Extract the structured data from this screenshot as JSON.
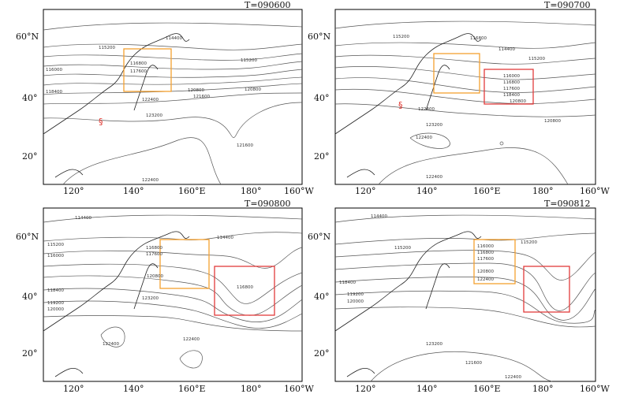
{
  "colors": {
    "frame": "#000000",
    "contour": "#444444",
    "coast": "#222222",
    "orange_box": "#f5a030",
    "red_box": "#e23b3b",
    "typhoon": "#e0322b"
  },
  "panels": [
    {
      "id": "p1",
      "title": "T=090600",
      "lat_labels": [
        "60°N",
        "40°",
        "20°"
      ],
      "lon_labels": [
        "120°",
        "140°",
        "160°E",
        "180°",
        "160°W"
      ],
      "contour_labels": [
        "114400",
        "115200",
        "115200",
        "116000",
        "116800",
        "117600",
        "118400",
        "120800",
        "121600",
        "122400",
        "123200",
        "120800",
        "121600",
        "122400"
      ],
      "has_orange_box": true,
      "has_red_box": false,
      "typhoon": true
    },
    {
      "id": "p2",
      "title": "T=090700",
      "lat_labels": [
        "60°N",
        "40°",
        "20°"
      ],
      "lon_labels": [
        "120°",
        "140°",
        "160°E",
        "180°",
        "160°W"
      ],
      "contour_labels": [
        "115200",
        "116800",
        "114400",
        "115200",
        "116000",
        "116800",
        "117600",
        "118400",
        "120800",
        "120800",
        "122400",
        "123200",
        "122400",
        "122400"
      ],
      "has_orange_box": true,
      "has_red_box": true,
      "typhoon": true
    },
    {
      "id": "p3",
      "title": "T=090800",
      "lat_labels": [
        "60°N",
        "40°",
        "20°"
      ],
      "lon_labels": [
        "120°",
        "140°",
        "160°E",
        "180°",
        "160°W"
      ],
      "contour_labels": [
        "114400",
        "115200",
        "116000",
        "116800",
        "117600",
        "118400",
        "119200",
        "120000",
        "120800",
        "123200",
        "122400",
        "122400",
        "114400",
        "116800"
      ],
      "has_orange_box": true,
      "has_red_box": true,
      "typhoon": false
    },
    {
      "id": "p4",
      "title": "T=090812",
      "lat_labels": [
        "60°N",
        "40°",
        "20°"
      ],
      "lon_labels": [
        "120°",
        "140°",
        "160°E",
        "180°",
        "160°W"
      ],
      "contour_labels": [
        "114400",
        "115200",
        "116000",
        "116800",
        "117600",
        "118400",
        "119200",
        "120000",
        "120800",
        "122400",
        "123200",
        "122400",
        "121600",
        "115200"
      ],
      "has_orange_box": true,
      "has_red_box": true,
      "typhoon": false
    }
  ]
}
